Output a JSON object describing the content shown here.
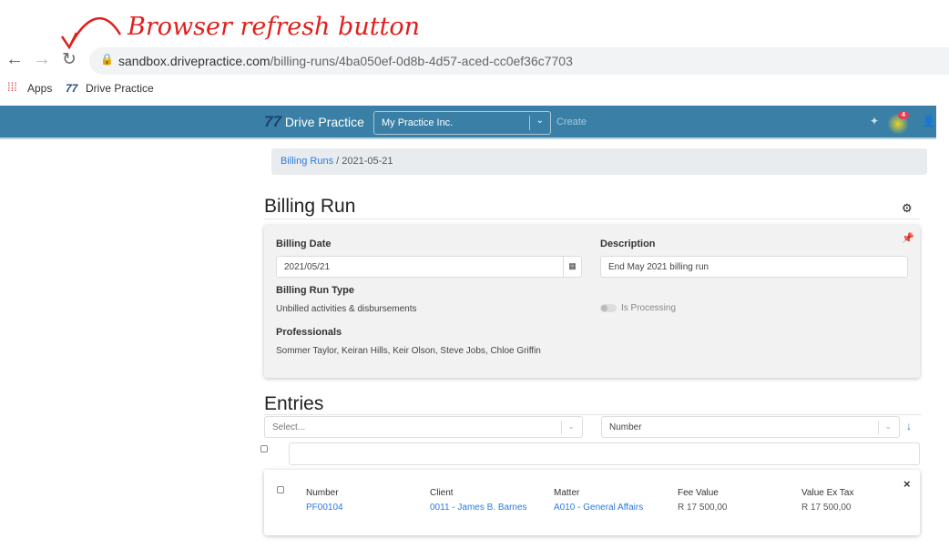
{
  "annotation": "Browser refresh button",
  "browser": {
    "url_host": "sandbox.drivepractice.com",
    "url_path": "/billing-runs/4ba050ef-0d8b-4d57-aced-cc0ef36c7703",
    "bookmarks": [
      {
        "label": "Apps"
      },
      {
        "label": "Drive Practice"
      }
    ]
  },
  "header": {
    "brand": "Drive Practice",
    "practice": "My Practice Inc.",
    "create": "Create",
    "notification_count": "4"
  },
  "breadcrumb": {
    "root": "Billing Runs",
    "current": "2021-05-21"
  },
  "billing_run": {
    "title": "Billing Run",
    "billing_date_label": "Billing Date",
    "billing_date": "2021/05/21",
    "description_label": "Description",
    "description": "End May 2021 billing run",
    "type_label": "Billing Run Type",
    "type": "Unbilled activities & disbursements",
    "is_processing_label": "Is Processing",
    "is_processing": false,
    "professionals_label": "Professionals",
    "professionals": "Sommer Taylor, Keiran Hills, Keir Olson, Steve Jobs, Chloe Griffin"
  },
  "entries": {
    "title": "Entries",
    "filter_placeholder": "Select...",
    "sort_field": "Number",
    "search_value": "",
    "columns": [
      "Number",
      "Client",
      "Matter",
      "Fee Value",
      "Value Ex Tax"
    ],
    "rows": [
      {
        "number": "PF00104",
        "client": "0011 - James B. Barnes",
        "matter": "A010 - General Affairs",
        "fee_value": "R 17 500,00",
        "value_ex_tax": "R 17 500,00"
      }
    ]
  },
  "colors": {
    "topbar": "#3a80a6",
    "link": "#2a7ae2",
    "annotation": "#e0201c",
    "badge": "#e0405a"
  }
}
